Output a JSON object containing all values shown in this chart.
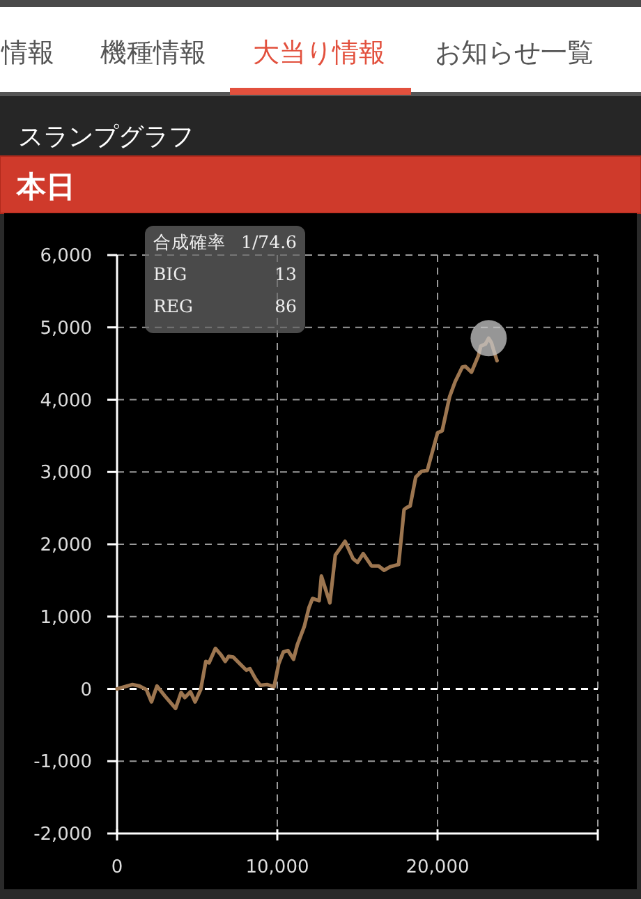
{
  "chart_data": {
    "type": "line",
    "title": "スランプグラフ",
    "subtitle": "本日",
    "annotations": [
      "情報",
      "機種情報",
      "大当り情報",
      "お知らせ一覧",
      "合成確率",
      "1/74.6",
      "BIG",
      "13",
      "REG",
      "86"
    ],
    "xlim": [
      0,
      30000
    ],
    "ylim": [
      -2000,
      6000
    ],
    "xticks": [
      0,
      {
        "value": 10000,
        "label": "10,000"
      },
      {
        "value": 20000,
        "label": "20,000"
      },
      {
        "value": 30000,
        "label": null
      }
    ],
    "yticks": [
      {
        "value": 6000,
        "label": "6,000"
      },
      {
        "value": 5000,
        "label": "5,000"
      },
      {
        "value": 4000,
        "label": "4,000"
      },
      {
        "value": 3000,
        "label": "3,000"
      },
      {
        "value": 2000,
        "label": "2,000"
      },
      {
        "value": 1000,
        "label": "1,000"
      },
      0,
      {
        "value": -1000,
        "label": "-1,000"
      },
      {
        "value": -2000,
        "label": "-2,000"
      }
    ],
    "grid": true,
    "ref_lines": [
      {
        "axis": "y",
        "value": 0,
        "color": "#ffffff",
        "line_style": "dashed"
      }
    ],
    "series": [
      {
        "type": "line",
        "color": "#9d7650",
        "x": [
          0,
          960,
          1390,
          1830,
          2150,
          2490,
          2990,
          3650,
          4000,
          4230,
          4580,
          4870,
          5220,
          5540,
          5740,
          6140,
          6490,
          6750,
          6960,
          7250,
          7650,
          8060,
          8290,
          8640,
          8930,
          9360,
          9800,
          10090,
          10380,
          10670,
          11010,
          11250,
          11680,
          11970,
          12200,
          12610,
          12750,
          13280,
          13620,
          14230,
          14730,
          15010,
          15360,
          15880,
          16320,
          16670,
          17040,
          17570,
          17910,
          18090,
          18290,
          18640,
          19010,
          19360,
          19800,
          20000,
          20290,
          20750,
          21100,
          21540,
          21740,
          22120,
          22550,
          22700,
          22990,
          23190,
          23360,
          23480,
          23710
        ],
        "values": [
          0,
          60,
          40,
          -10,
          -180,
          40,
          -100,
          -270,
          -50,
          -120,
          -40,
          -180,
          -10,
          380,
          360,
          560,
          470,
          380,
          450,
          440,
          350,
          260,
          280,
          140,
          50,
          60,
          30,
          350,
          510,
          530,
          410,
          610,
          860,
          1120,
          1250,
          1220,
          1560,
          1190,
          1850,
          2040,
          1800,
          1750,
          1870,
          1700,
          1700,
          1640,
          1690,
          1720,
          2480,
          2510,
          2530,
          2930,
          3010,
          3020,
          3380,
          3540,
          3570,
          4040,
          4250,
          4450,
          4460,
          4380,
          4610,
          4740,
          4770,
          4850,
          4790,
          4700,
          4540
        ]
      },
      {
        "type": "scatter",
        "color": "#c8c8c8",
        "marker": "circle",
        "x": [
          23190
        ],
        "values": [
          4850
        ]
      }
    ]
  }
}
